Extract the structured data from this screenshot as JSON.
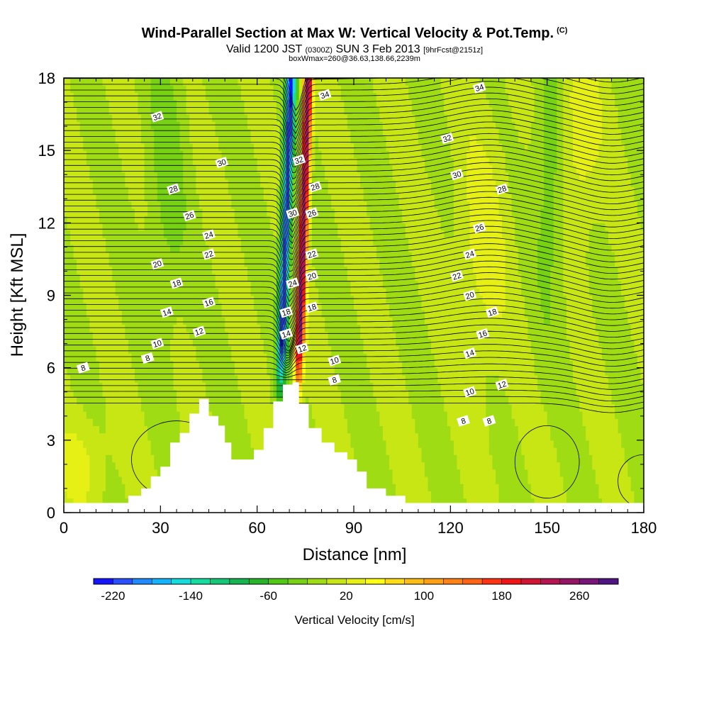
{
  "header": {
    "title_main": "Wind-Parallel Section at Max W: Vertical Velocity & Pot.Temp.",
    "title_mark": "(C)",
    "subtitle_a": "Valid 1200 JST",
    "subtitle_b": "(0300Z)",
    "subtitle_c": "SUN 3 Feb 2013",
    "subtitle_d": "[9hrFcst@2151z]",
    "info": "boxWmax=260@36.63,138.66,2239m"
  },
  "chart_data": {
    "type": "heatmap",
    "xlabel": "Distance [nm]",
    "ylabel": "Height [Kft MSL]",
    "xlim": [
      0,
      180
    ],
    "ylim": [
      0,
      18
    ],
    "xticks": [
      "0",
      "30",
      "60",
      "90",
      "120",
      "150",
      "180"
    ],
    "yticks": [
      "0",
      "3",
      "6",
      "9",
      "12",
      "15",
      "18"
    ],
    "colorbar": {
      "title": "Vertical Velocity [cm/s]",
      "labels": [
        "-220",
        "-140",
        "-60",
        "20",
        "100",
        "180",
        "260"
      ],
      "colors": [
        "#1414ff",
        "#2850ff",
        "#1e8cff",
        "#14b4ff",
        "#14dcdc",
        "#14dca0",
        "#14c878",
        "#14b450",
        "#28b428",
        "#50c814",
        "#78d214",
        "#a0dc14",
        "#c8e614",
        "#e6f014",
        "#ffff14",
        "#ffdc14",
        "#ffbe14",
        "#ffa014",
        "#ff8214",
        "#ff6414",
        "#ff3214",
        "#f01414",
        "#d21432",
        "#b41450",
        "#961464",
        "#781478",
        "#501482"
      ]
    },
    "terrain_nm_kft": [
      [
        0,
        0.4
      ],
      [
        20,
        0.4
      ],
      [
        20,
        0.7
      ],
      [
        24,
        0.7
      ],
      [
        24,
        1.0
      ],
      [
        27,
        1.0
      ],
      [
        27,
        1.5
      ],
      [
        30,
        1.5
      ],
      [
        30,
        1.9
      ],
      [
        33,
        1.9
      ],
      [
        33,
        2.9
      ],
      [
        36,
        2.9
      ],
      [
        36,
        3.3
      ],
      [
        39,
        3.3
      ],
      [
        39,
        4.1
      ],
      [
        42,
        4.1
      ],
      [
        42,
        4.7
      ],
      [
        45,
        4.7
      ],
      [
        45,
        4.0
      ],
      [
        48,
        4.0
      ],
      [
        48,
        3.6
      ],
      [
        50,
        3.6
      ],
      [
        50,
        2.9
      ],
      [
        52,
        2.9
      ],
      [
        52,
        2.2
      ],
      [
        59,
        2.2
      ],
      [
        59,
        2.6
      ],
      [
        62,
        2.6
      ],
      [
        62,
        3.5
      ],
      [
        65,
        3.5
      ],
      [
        65,
        4.6
      ],
      [
        68,
        4.6
      ],
      [
        68,
        5.3
      ],
      [
        71,
        5.3
      ],
      [
        71,
        5.4
      ],
      [
        73,
        5.4
      ],
      [
        73,
        4.5
      ],
      [
        76,
        4.5
      ],
      [
        76,
        3.5
      ],
      [
        80,
        3.5
      ],
      [
        80,
        2.9
      ],
      [
        84,
        2.9
      ],
      [
        84,
        2.5
      ],
      [
        88,
        2.5
      ],
      [
        88,
        2.2
      ],
      [
        91,
        2.2
      ],
      [
        91,
        1.7
      ],
      [
        94,
        1.7
      ],
      [
        94,
        1.0
      ],
      [
        100,
        1.0
      ],
      [
        100,
        0.7
      ],
      [
        106,
        0.7
      ],
      [
        106,
        0.4
      ],
      [
        180,
        0.4
      ]
    ],
    "series": [
      {
        "name": "8",
        "label_points": [
          [
            6,
            6.0
          ],
          [
            26,
            6.4
          ],
          [
            84,
            5.5
          ],
          [
            124,
            3.8
          ],
          [
            132,
            3.8
          ]
        ]
      },
      {
        "name": "10",
        "label_points": [
          [
            29,
            7.0
          ],
          [
            84,
            6.3
          ],
          [
            126,
            5.0
          ]
        ]
      },
      {
        "name": "12",
        "label_points": [
          [
            42,
            7.5
          ],
          [
            74,
            6.8
          ],
          [
            136,
            5.3
          ]
        ]
      },
      {
        "name": "14",
        "label_points": [
          [
            32,
            8.3
          ],
          [
            69,
            7.4
          ],
          [
            126,
            6.6
          ]
        ]
      },
      {
        "name": "16",
        "label_points": [
          [
            45,
            8.7
          ],
          [
            130,
            7.4
          ]
        ]
      },
      {
        "name": "18",
        "label_points": [
          [
            35,
            9.5
          ],
          [
            69,
            8.3
          ],
          [
            77,
            8.5
          ],
          [
            133,
            8.3
          ]
        ]
      },
      {
        "name": "20",
        "label_points": [
          [
            29,
            10.3
          ],
          [
            77,
            9.8
          ],
          [
            126,
            9.0
          ]
        ]
      },
      {
        "name": "22",
        "label_points": [
          [
            45,
            10.7
          ],
          [
            77,
            10.7
          ],
          [
            122,
            9.8
          ]
        ]
      },
      {
        "name": "24",
        "label_points": [
          [
            45,
            11.5
          ],
          [
            71,
            9.5
          ],
          [
            126,
            10.7
          ]
        ]
      },
      {
        "name": "26",
        "label_points": [
          [
            39,
            12.3
          ],
          [
            77,
            12.4
          ],
          [
            129,
            11.8
          ]
        ]
      },
      {
        "name": "28",
        "label_points": [
          [
            34,
            13.4
          ],
          [
            78,
            13.5
          ],
          [
            136,
            13.4
          ]
        ]
      },
      {
        "name": "30",
        "label_points": [
          [
            49,
            14.5
          ],
          [
            71,
            12.4
          ],
          [
            122,
            14.0
          ]
        ]
      },
      {
        "name": "32",
        "label_points": [
          [
            29,
            16.4
          ],
          [
            73,
            14.6
          ],
          [
            119,
            15.5
          ]
        ]
      },
      {
        "name": "34",
        "label_points": [
          [
            81,
            17.3
          ],
          [
            129,
            17.6
          ]
        ]
      }
    ]
  }
}
